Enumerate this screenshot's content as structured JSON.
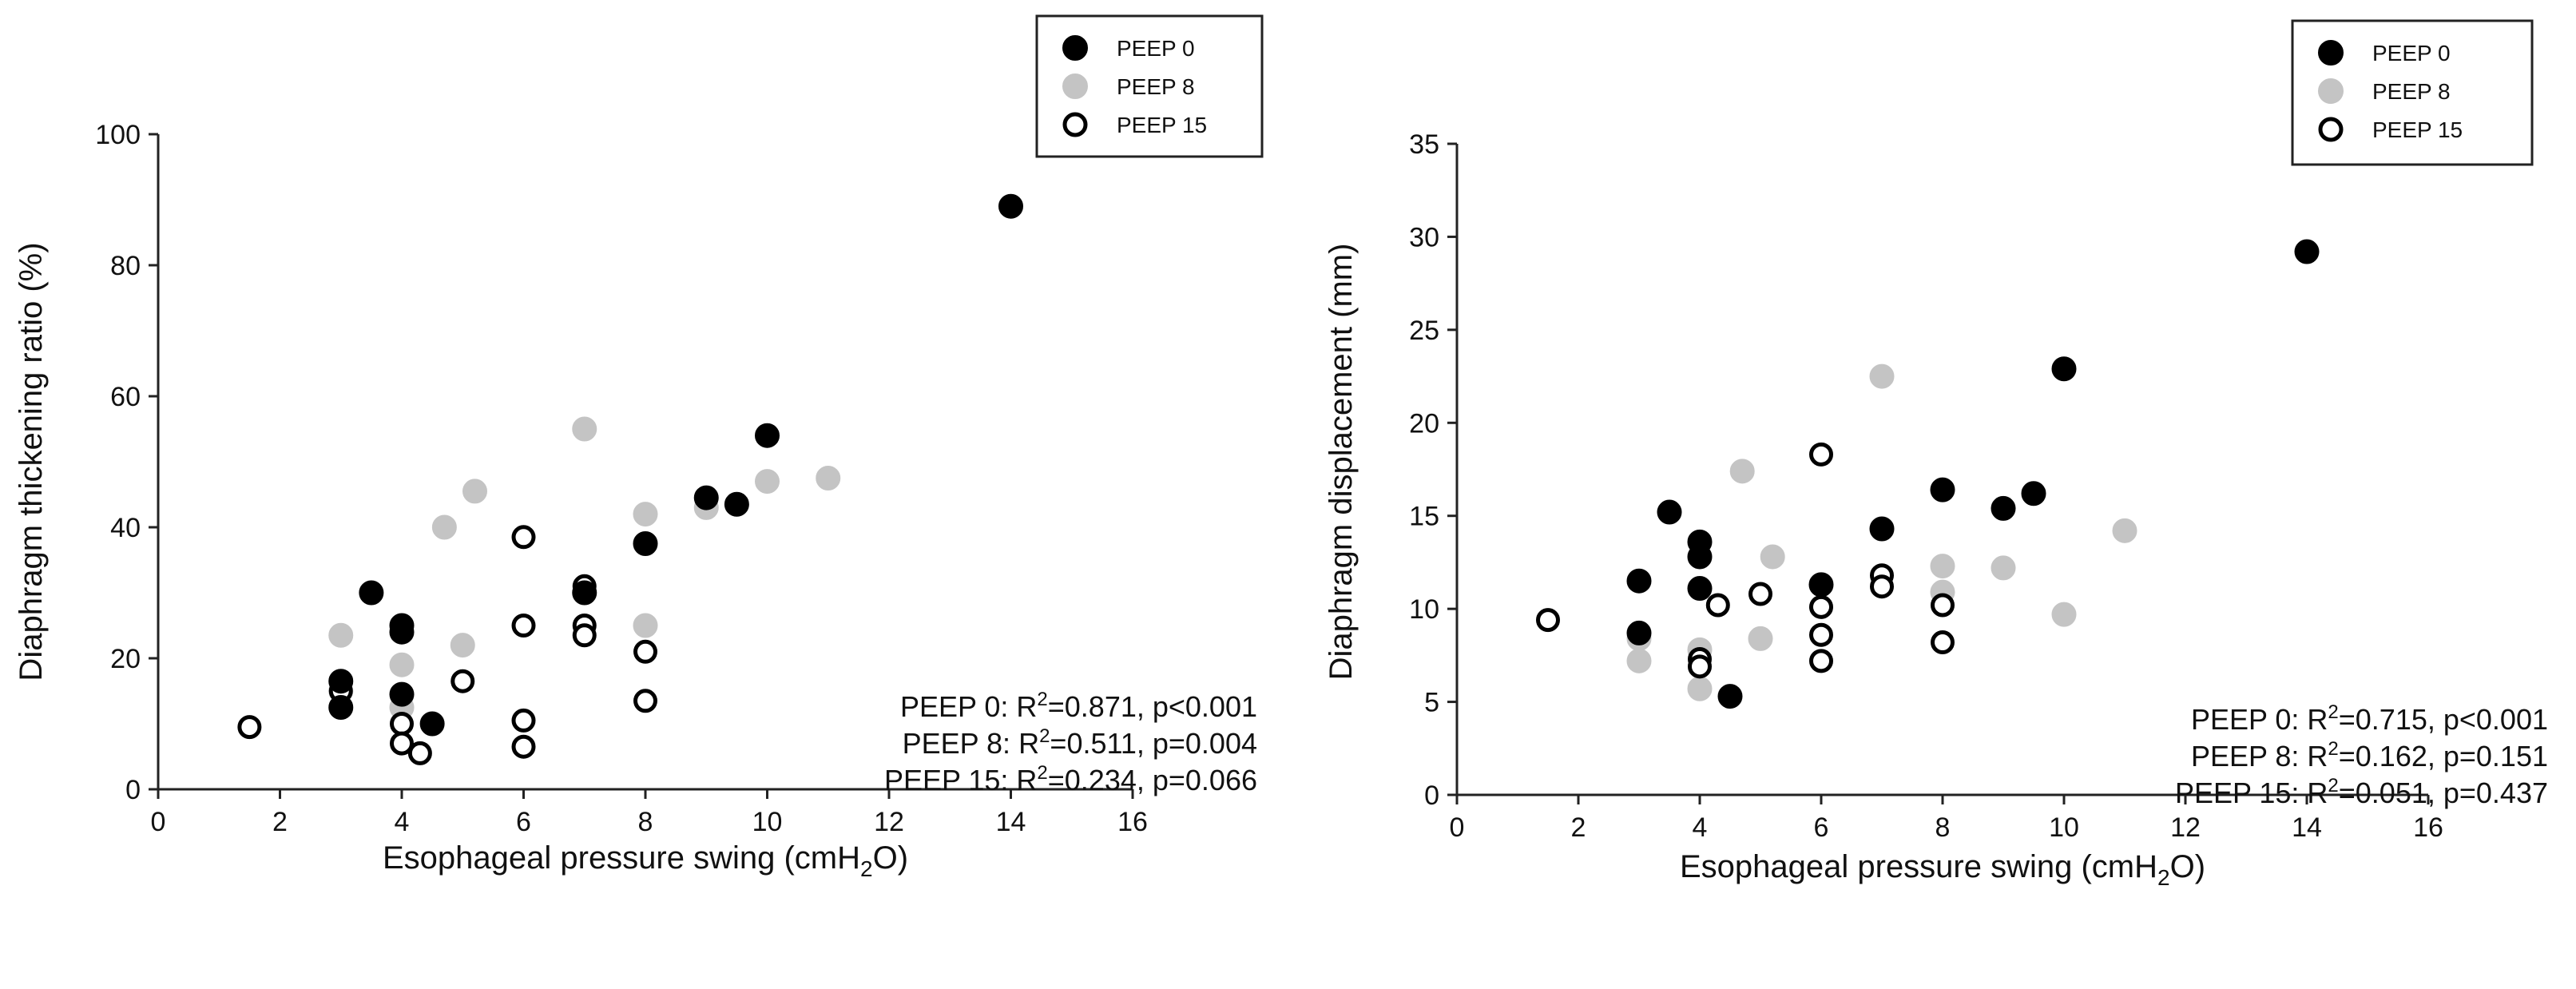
{
  "chart_data": [
    {
      "type": "scatter",
      "title": "",
      "xlabel": "Esophageal pressure swing (cmH",
      "xlabel_sub": "2",
      "xlabel_tail": "O)",
      "ylabel": "Diaphragm thickening ratio (%)",
      "xlim": [
        0,
        16
      ],
      "ylim": [
        0,
        100
      ],
      "xticks": [
        0,
        2,
        4,
        6,
        8,
        10,
        12,
        14,
        16
      ],
      "yticks": [
        0,
        20,
        40,
        60,
        80,
        100
      ],
      "legend_position": "top-right",
      "series": [
        {
          "name": "PEEP 0",
          "style": "black",
          "points": [
            [
              3,
              12.5
            ],
            [
              3,
              16.5
            ],
            [
              3.5,
              30
            ],
            [
              4,
              14.5
            ],
            [
              4,
              24
            ],
            [
              4,
              25
            ],
            [
              4.5,
              10
            ],
            [
              7,
              30
            ],
            [
              8,
              37.5
            ],
            [
              9,
              44.5
            ],
            [
              9.5,
              43.5
            ],
            [
              10,
              54
            ],
            [
              14,
              89
            ]
          ]
        },
        {
          "name": "PEEP 8",
          "style": "gray",
          "points": [
            [
              3,
              23.5
            ],
            [
              3,
              15
            ],
            [
              4,
              19
            ],
            [
              4,
              12.5
            ],
            [
              4.7,
              40
            ],
            [
              5,
              22
            ],
            [
              5.2,
              45.5
            ],
            [
              7,
              55
            ],
            [
              8,
              42
            ],
            [
              8,
              25
            ],
            [
              9,
              43
            ],
            [
              10,
              47
            ],
            [
              11,
              47.5
            ]
          ]
        },
        {
          "name": "PEEP 15",
          "style": "open",
          "points": [
            [
              1.5,
              9.5
            ],
            [
              3,
              15
            ],
            [
              4,
              10
            ],
            [
              4,
              7
            ],
            [
              4.3,
              5.5
            ],
            [
              5,
              16.5
            ],
            [
              6,
              38.5
            ],
            [
              6,
              25
            ],
            [
              6,
              10.5
            ],
            [
              6,
              6.5
            ],
            [
              7,
              31
            ],
            [
              7,
              25
            ],
            [
              7,
              23.5
            ],
            [
              8,
              21
            ],
            [
              8,
              13.5
            ]
          ]
        }
      ],
      "annotations": [
        {
          "label": "PEEP 0",
          "r2": "0.871",
          "p": "p<0.001"
        },
        {
          "label": "PEEP 8",
          "r2": "0.511",
          "p": "p=0.004"
        },
        {
          "label": "PEEP 15",
          "r2": "0.234",
          "p": "p=0.066"
        }
      ]
    },
    {
      "type": "scatter",
      "title": "",
      "xlabel": "Esophageal pressure swing (cmH",
      "xlabel_sub": "2",
      "xlabel_tail": "O)",
      "ylabel": "Diaphragm displacement (mm)",
      "xlim": [
        0,
        16
      ],
      "ylim": [
        0,
        35
      ],
      "xticks": [
        0,
        2,
        4,
        6,
        8,
        10,
        12,
        14,
        16
      ],
      "yticks": [
        0,
        5,
        10,
        15,
        20,
        25,
        30,
        35
      ],
      "legend_position": "top-right",
      "series": [
        {
          "name": "PEEP 0",
          "style": "black",
          "points": [
            [
              3,
              11.5
            ],
            [
              3,
              8.7
            ],
            [
              3.5,
              15.2
            ],
            [
              4,
              13.6
            ],
            [
              4,
              12.8
            ],
            [
              4,
              11.1
            ],
            [
              4.5,
              5.3
            ],
            [
              6,
              11.3
            ],
            [
              7,
              14.3
            ],
            [
              8,
              16.4
            ],
            [
              9,
              15.4
            ],
            [
              9.5,
              16.2
            ],
            [
              10,
              22.9
            ],
            [
              14,
              29.2
            ]
          ]
        },
        {
          "name": "PEEP 8",
          "style": "gray",
          "points": [
            [
              3,
              8.4
            ],
            [
              3,
              7.2
            ],
            [
              4,
              7.8
            ],
            [
              4,
              5.7
            ],
            [
              4.7,
              17.4
            ],
            [
              5,
              8.4
            ],
            [
              5.2,
              12.8
            ],
            [
              7,
              22.5
            ],
            [
              8,
              12.3
            ],
            [
              8,
              10.9
            ],
            [
              9,
              12.2
            ],
            [
              10,
              9.7
            ],
            [
              11,
              14.2
            ]
          ]
        },
        {
          "name": "PEEP 15",
          "style": "open",
          "points": [
            [
              1.5,
              9.4
            ],
            [
              4,
              7.3
            ],
            [
              4,
              6.9
            ],
            [
              4.3,
              10.2
            ],
            [
              5,
              10.8
            ],
            [
              6,
              18.3
            ],
            [
              6,
              10.1
            ],
            [
              6,
              8.6
            ],
            [
              6,
              7.2
            ],
            [
              7,
              11.8
            ],
            [
              7,
              11.2
            ],
            [
              8,
              10.2
            ],
            [
              8,
              8.2
            ]
          ]
        }
      ],
      "annotations": [
        {
          "label": "PEEP 0",
          "r2": "0.715",
          "p": "p<0.001"
        },
        {
          "label": "PEEP 8",
          "r2": "0.162",
          "p": "p=0.151"
        },
        {
          "label": "PEEP 15",
          "r2": "0.051",
          "p": "p=0.437"
        }
      ]
    }
  ],
  "colors": {
    "black": "#000000",
    "gray": "#c4c4c4",
    "open_fill": "#ffffff",
    "open_stroke": "#000000",
    "axis": "#222222"
  },
  "annotation_template": {
    "r2_symbol": "R",
    "r2_sup": "2"
  }
}
